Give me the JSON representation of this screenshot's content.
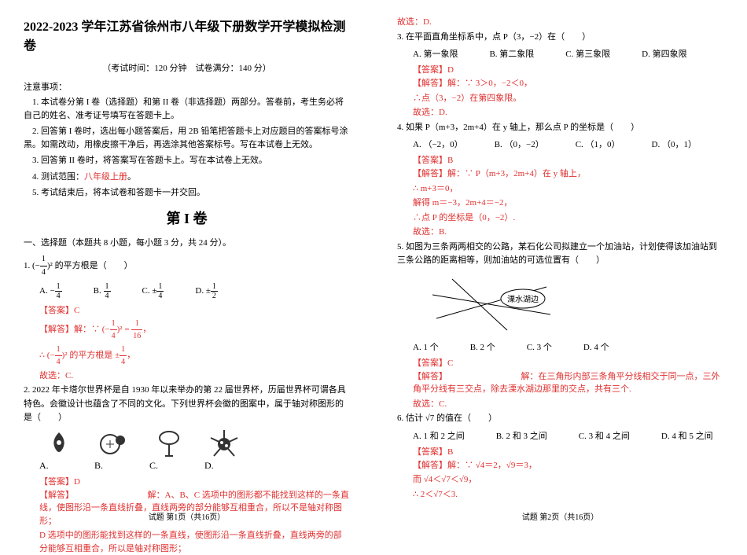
{
  "header": {
    "title": "2022-2023 学年江苏省徐州市八年级下册数学开学模拟检测卷",
    "exam_info": "（考试时间：120 分钟　试卷满分：140 分）",
    "notice_head": "注意事项：",
    "notes": [
      "1. 本试卷分第 I 卷（选择题）和第 II 卷（非选择题）两部分。答卷前，考生务必将自己的姓名、准考证号填写在答题卡上。",
      "2. 回答第 I 卷时，选出每小题答案后，用 2B 铅笔把答题卡上对应题目的答案标号涂黑。如需改动，用橡皮擦干净后，再选涂其他答案标号。写在本试卷上无效。",
      "3. 回答第 II 卷时，将答案写在答题卡上。写在本试卷上无效。",
      "4. 测试范围：八年级上册。",
      "5. 考试结束后，将本试卷和答题卡一并交回。"
    ],
    "vol1": "第 I 卷"
  },
  "section1": "一、选择题（本题共 8 小题，每小题 3 分，共 24 分）。",
  "q1": {
    "stem_a": "1. (−",
    "stem_b": ")² 的平方根是（　　）",
    "opts": [
      "A. −",
      "B. ",
      "C. ±",
      "D. ±"
    ],
    "ans": "【答案】C",
    "exp1": "【解答】解：∵ (−",
    "exp1b": ")² = ",
    "exp2": "∴ (−",
    "exp2b": ")² 的平方根是 ±",
    "exp3": "故选：C.",
    "frac14n": "1",
    "frac14d": "4",
    "frac12n": "1",
    "frac12d": "2",
    "frac116n": "1",
    "frac116d": "16"
  },
  "q2": {
    "stem": "2. 2022 年卡塔尔世界杯是自 1930 年以来举办的第 22 届世界杯，历届世界杯可谓各具特色。会徽设计也蕴含了不同的文化。下列世界杯会徽的图案中，属于轴对称图形的是（　　）",
    "optA": "A.",
    "optB": "B.",
    "optC": "C.",
    "optD": "D.",
    "ans": "【答案】D",
    "exp_head": "【解答】",
    "exp1": "解：A、B、C 选项中的图形都不能找到这样的一条直线，使图形沿一条直线折叠，直线两旁的部分能够互相重合，所以不是轴对称图形；",
    "exp2": "D 选项中的图形能找到这样的一条直线，使图形沿一条直线折叠，直线两旁的部分能够互相重合，所以是轴对称图形；",
    "exp3": "故选：D."
  },
  "q3": {
    "stem": "3. 在平面直角坐标系中，点 P（3，−2）在（　　）",
    "opts": [
      "A. 第一象限",
      "B. 第二象限",
      "C. 第三象限",
      "D. 第四象限"
    ],
    "ans": "【答案】D",
    "exp1": "【解答】解：∵ 3＞0，−2＜0，",
    "exp2": "∴点（3，−2）在第四象限。",
    "exp3": "故选：D."
  },
  "q4": {
    "stem": "4. 如果 P（m+3，2m+4）在 y 轴上，那么点 P 的坐标是（　　）",
    "opts": [
      "A. （−2，0）",
      "B. （0，−2）",
      "C. （1，0）",
      "D. （0，1）"
    ],
    "ans": "【答案】B",
    "exp1": "【解答】解：∵ P（m+3，2m+4）在 y 轴上，",
    "exp2": "∴ m+3＝0，",
    "exp3": "解得 m＝−3，2m+4＝−2，",
    "exp4": "∴点 P 的坐标是（0，−2）.",
    "exp5": "故选：B."
  },
  "q5": {
    "stem": "5. 如图为三条两两相交的公路，某石化公司拟建立一个加油站，计划使得该加油站到三条公路的距离相等，则加油站的可选位置有（　　）",
    "label": "溧水湖边",
    "opts": [
      "A. 1 个",
      "B. 2 个",
      "C. 3 个",
      "D. 4 个"
    ],
    "ans": "【答案】C",
    "exp_head": "【解答】",
    "exp1": "解：在三角形内部三条角平分线相交于同一点，三外角平分线有三交点，除去溧水湖边那里的交点，共有三个.",
    "exp2": "故选：C."
  },
  "q6": {
    "stem": "6. 估计 √7 的值在（　　）",
    "opts": [
      "A. 1 和 2 之间",
      "B. 2 和 3 之间",
      "C. 3 和 4 之间",
      "D. 4 和 5 之间"
    ],
    "ans": "【答案】B",
    "exp1": "【解答】解：∵ √4＝2，√9＝3，",
    "exp2": "而 √4＜√7＜√9，",
    "exp3": "∴ 2＜√7＜3."
  },
  "footers": {
    "p1": "试题 第1页（共16页）",
    "p2": "试题 第2页（共16页）"
  },
  "colors": {
    "text": "#000000",
    "red": "#e03030",
    "bg": "#ffffff"
  }
}
